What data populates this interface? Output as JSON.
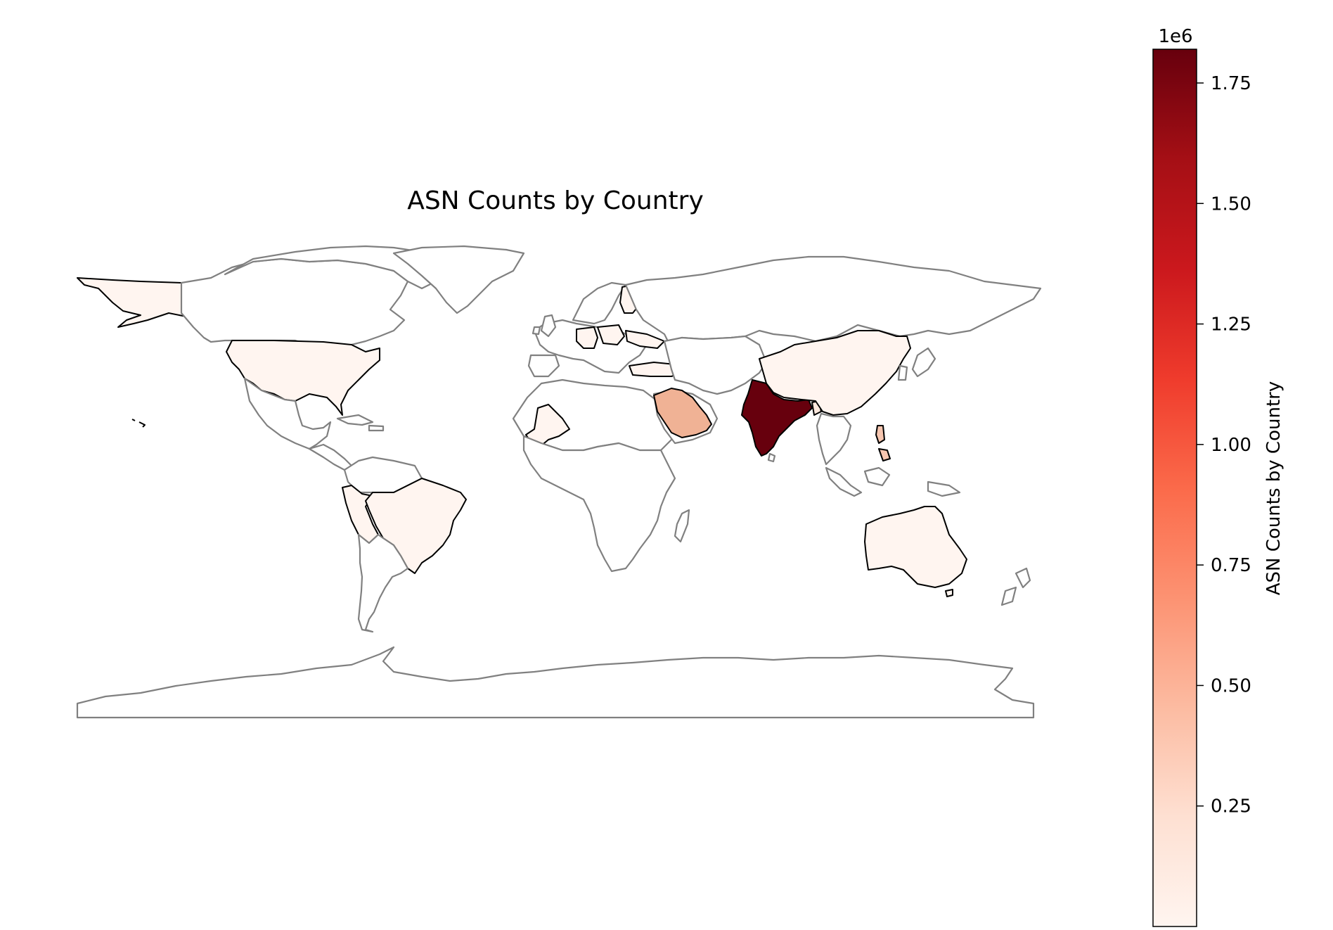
{
  "title": "ASN Counts by Country",
  "colorbar": {
    "label": "ASN Counts by Country",
    "multiplier": "1e6",
    "ticks": [
      0.25,
      0.5,
      0.75,
      1.0,
      1.25,
      1.5,
      1.75
    ],
    "tick_labels": [
      "0.25",
      "0.50",
      "0.75",
      "1.00",
      "1.25",
      "1.50",
      "1.75"
    ],
    "min": 0.0,
    "max": 1.82,
    "cmap": "Reds",
    "colors": [
      "#fff5f0",
      "#fee0d2",
      "#fcbba1",
      "#fc9272",
      "#fb6a4a",
      "#ef3b2c",
      "#cb181d",
      "#a50f15",
      "#67000d"
    ]
  },
  "chart_data": {
    "type": "choropleth",
    "title": "ASN Counts by Country",
    "value_label": "ASN Counts by Country",
    "scale": "1e6",
    "vmin": 0.0,
    "vmax": 1.82,
    "regions": [
      {
        "name": "India",
        "value": 1.82
      },
      {
        "name": "Saudi Arabia",
        "value": 0.45
      },
      {
        "name": "Philippines",
        "value": 0.3
      },
      {
        "name": "United States",
        "value": 0.02
      },
      {
        "name": "Brazil",
        "value": 0.02
      },
      {
        "name": "China",
        "value": 0.02
      },
      {
        "name": "Australia",
        "value": 0.02
      },
      {
        "name": "Peru",
        "value": 0.02
      },
      {
        "name": "Mali",
        "value": 0.02
      },
      {
        "name": "Bangladesh",
        "value": 0.05
      },
      {
        "name": "Turkey",
        "value": 0.01
      },
      {
        "name": "Finland",
        "value": 0.01
      },
      {
        "name": "Germany",
        "value": 0.01
      },
      {
        "name": "Poland",
        "value": 0.01
      }
    ],
    "other_countries": "no data (white, gray border)"
  }
}
